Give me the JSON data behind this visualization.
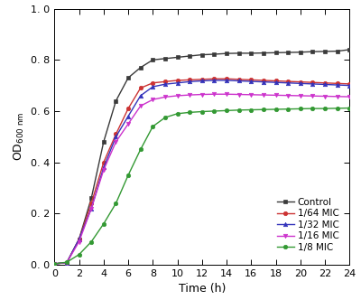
{
  "title": "",
  "xlabel": "Time (h)",
  "ylabel": "OD_{600 nm}",
  "xlim": [
    0,
    24
  ],
  "ylim": [
    0.0,
    1.0
  ],
  "xticks": [
    0,
    2,
    4,
    6,
    8,
    10,
    12,
    14,
    16,
    18,
    20,
    22,
    24
  ],
  "yticks": [
    0.0,
    0.2,
    0.4,
    0.6,
    0.8,
    1.0
  ],
  "series": [
    {
      "label": "Control",
      "color": "#3a3a3a",
      "marker": "s",
      "markersize": 3.5,
      "x": [
        0,
        1,
        2,
        3,
        4,
        5,
        6,
        7,
        8,
        9,
        10,
        11,
        12,
        13,
        14,
        15,
        16,
        17,
        18,
        19,
        20,
        21,
        22,
        23,
        24
      ],
      "y": [
        0.004,
        0.008,
        0.1,
        0.26,
        0.48,
        0.64,
        0.73,
        0.77,
        0.8,
        0.805,
        0.81,
        0.815,
        0.82,
        0.822,
        0.825,
        0.826,
        0.826,
        0.827,
        0.828,
        0.829,
        0.83,
        0.832,
        0.833,
        0.834,
        0.84
      ]
    },
    {
      "label": "1/64 MIC",
      "color": "#cc3333",
      "marker": "o",
      "markersize": 3.5,
      "x": [
        0,
        1,
        2,
        3,
        4,
        5,
        6,
        7,
        8,
        9,
        10,
        11,
        12,
        13,
        14,
        15,
        16,
        17,
        18,
        19,
        20,
        21,
        22,
        23,
        24
      ],
      "y": [
        0.004,
        0.008,
        0.1,
        0.24,
        0.4,
        0.51,
        0.61,
        0.69,
        0.71,
        0.715,
        0.72,
        0.722,
        0.724,
        0.726,
        0.726,
        0.724,
        0.722,
        0.72,
        0.718,
        0.716,
        0.714,
        0.712,
        0.71,
        0.708,
        0.706
      ]
    },
    {
      "label": "1/32 MIC",
      "color": "#3333bb",
      "marker": "^",
      "markersize": 3.5,
      "x": [
        0,
        1,
        2,
        3,
        4,
        5,
        6,
        7,
        8,
        9,
        10,
        11,
        12,
        13,
        14,
        15,
        16,
        17,
        18,
        19,
        20,
        21,
        22,
        23,
        24
      ],
      "y": [
        0.004,
        0.008,
        0.1,
        0.22,
        0.38,
        0.5,
        0.58,
        0.66,
        0.695,
        0.705,
        0.71,
        0.715,
        0.718,
        0.72,
        0.72,
        0.718,
        0.716,
        0.714,
        0.712,
        0.71,
        0.708,
        0.706,
        0.704,
        0.702,
        0.7
      ]
    },
    {
      "label": "1/16 MIC",
      "color": "#cc33cc",
      "marker": "v",
      "markersize": 3.5,
      "x": [
        0,
        1,
        2,
        3,
        4,
        5,
        6,
        7,
        8,
        9,
        10,
        11,
        12,
        13,
        14,
        15,
        16,
        17,
        18,
        19,
        20,
        21,
        22,
        23,
        24
      ],
      "y": [
        0.004,
        0.008,
        0.09,
        0.22,
        0.37,
        0.48,
        0.55,
        0.62,
        0.645,
        0.655,
        0.66,
        0.663,
        0.665,
        0.666,
        0.666,
        0.665,
        0.664,
        0.663,
        0.662,
        0.661,
        0.66,
        0.659,
        0.658,
        0.657,
        0.656
      ]
    },
    {
      "label": "1/8 MIC",
      "color": "#339933",
      "marker": "o",
      "markersize": 3.5,
      "x": [
        0,
        1,
        2,
        3,
        4,
        5,
        6,
        7,
        8,
        9,
        10,
        11,
        12,
        13,
        14,
        15,
        16,
        17,
        18,
        19,
        20,
        21,
        22,
        23,
        24
      ],
      "y": [
        0.004,
        0.01,
        0.04,
        0.09,
        0.16,
        0.24,
        0.35,
        0.45,
        0.54,
        0.575,
        0.59,
        0.595,
        0.598,
        0.6,
        0.602,
        0.604,
        0.605,
        0.606,
        0.607,
        0.608,
        0.609,
        0.61,
        0.61,
        0.611,
        0.612
      ]
    }
  ],
  "fontsize": 9,
  "linewidth": 1.0
}
